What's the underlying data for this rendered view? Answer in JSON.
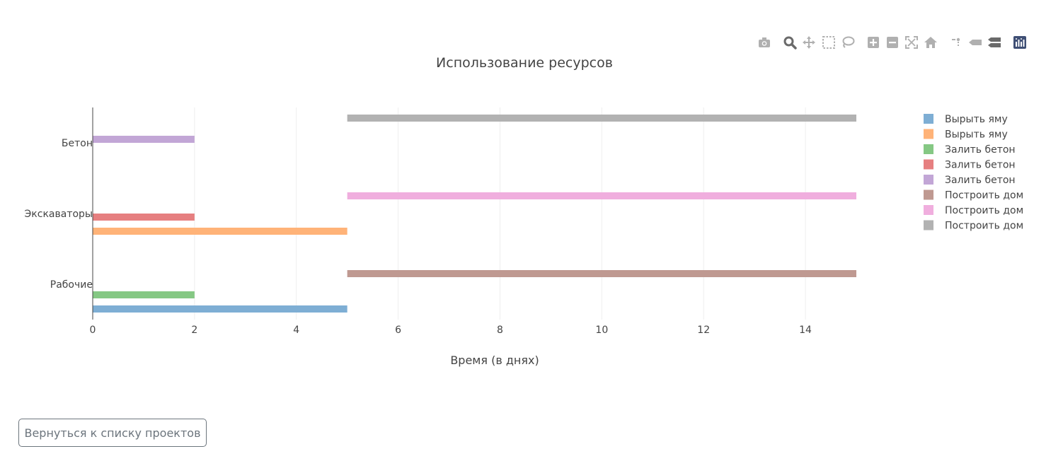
{
  "modebar": {
    "icons": [
      "camera-icon",
      "zoom-icon",
      "pan-icon",
      "box-select-icon",
      "lasso-select-icon",
      "zoom-in-icon",
      "zoom-out-icon",
      "autoscale-icon",
      "reset-axes-icon",
      "spike-lines-icon",
      "hover-closest-icon",
      "hover-compare-icon",
      "plotly-logo-icon"
    ],
    "icon_color": "#b0b0b0",
    "active_color": "#7f7f7f",
    "logo_color": "#3f4f75"
  },
  "footer": {
    "back_label": "Вернуться к списку проектов"
  },
  "chart_data": {
    "type": "bar",
    "orientation": "horizontal",
    "title": "Использование ресурсов",
    "xlabel": "Время (в днях)",
    "ylabel": "",
    "xlim": [
      0,
      15
    ],
    "xticks": [
      0,
      2,
      4,
      6,
      8,
      10,
      12,
      14
    ],
    "categories": [
      "Рабочие",
      "Экскаваторы",
      "Бетон"
    ],
    "grid": true,
    "legend_position": "right",
    "series": [
      {
        "name": "Вырыть яму",
        "category": "Рабочие",
        "start": 0,
        "end": 5,
        "color": "#7eaed4"
      },
      {
        "name": "Вырыть яму",
        "category": "Экскаваторы",
        "start": 0,
        "end": 5,
        "color": "#ffb378"
      },
      {
        "name": "Залить бетон",
        "category": "Рабочие",
        "start": 0,
        "end": 2,
        "color": "#85c884"
      },
      {
        "name": "Залить бетон",
        "category": "Экскаваторы",
        "start": 0,
        "end": 2,
        "color": "#e67f80"
      },
      {
        "name": "Залить бетон",
        "category": "Бетон",
        "start": 0,
        "end": 2,
        "color": "#c2a6d6"
      },
      {
        "name": "Построить дом",
        "category": "Рабочие",
        "start": 5,
        "end": 15,
        "color": "#bf9991"
      },
      {
        "name": "Построить дом",
        "category": "Экскаваторы",
        "start": 5,
        "end": 15,
        "color": "#f0aede"
      },
      {
        "name": "Построить дом",
        "category": "Бетон",
        "start": 5,
        "end": 15,
        "color": "#b2b2b2"
      }
    ]
  }
}
